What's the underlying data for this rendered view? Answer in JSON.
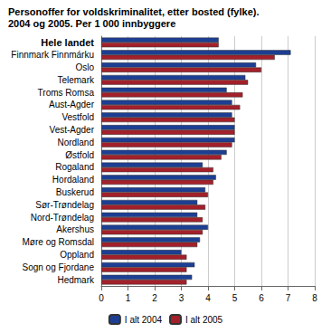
{
  "chart_data": {
    "type": "bar",
    "orientation": "horizontal",
    "title": "Personoffer for voldskriminalitet, etter bosted (fylke).",
    "subtitle": "2004 og 2005. Per 1 000 innbyggere",
    "categories": [
      "Hele landet",
      "Finnmark Finnmárku",
      "Oslo",
      "Telemark",
      "Troms Romsa",
      "Aust-Agder",
      "Vestfold",
      "Vest-Agder",
      "Nordland",
      "Østfold",
      "Rogaland",
      "Hordaland",
      "Buskerud",
      "Sør-Trøndelag",
      "Nord-Trøndelag",
      "Akershus",
      "Møre og Romsdal",
      "Oppland",
      "Sogn og Fjordane",
      "Hedmark"
    ],
    "series": [
      {
        "name": "I alt 2004",
        "color": "#1c3f94",
        "values": [
          4.4,
          7.1,
          5.8,
          5.4,
          4.7,
          4.9,
          4.9,
          5.0,
          5.0,
          4.7,
          3.8,
          4.3,
          3.9,
          3.6,
          3.6,
          4.0,
          3.7,
          3.0,
          3.5,
          3.4
        ]
      },
      {
        "name": "I alt 2005",
        "color": "#a3202a",
        "values": [
          4.4,
          6.5,
          6.0,
          5.5,
          5.3,
          5.2,
          5.0,
          5.0,
          4.9,
          4.5,
          4.2,
          4.2,
          4.0,
          3.9,
          3.8,
          3.8,
          3.6,
          3.2,
          3.2,
          3.2
        ]
      }
    ],
    "xlim": [
      0,
      8
    ],
    "xticks": [
      0,
      1,
      2,
      3,
      4,
      5,
      6,
      7,
      8
    ],
    "grid": true,
    "legend": "bottom"
  }
}
